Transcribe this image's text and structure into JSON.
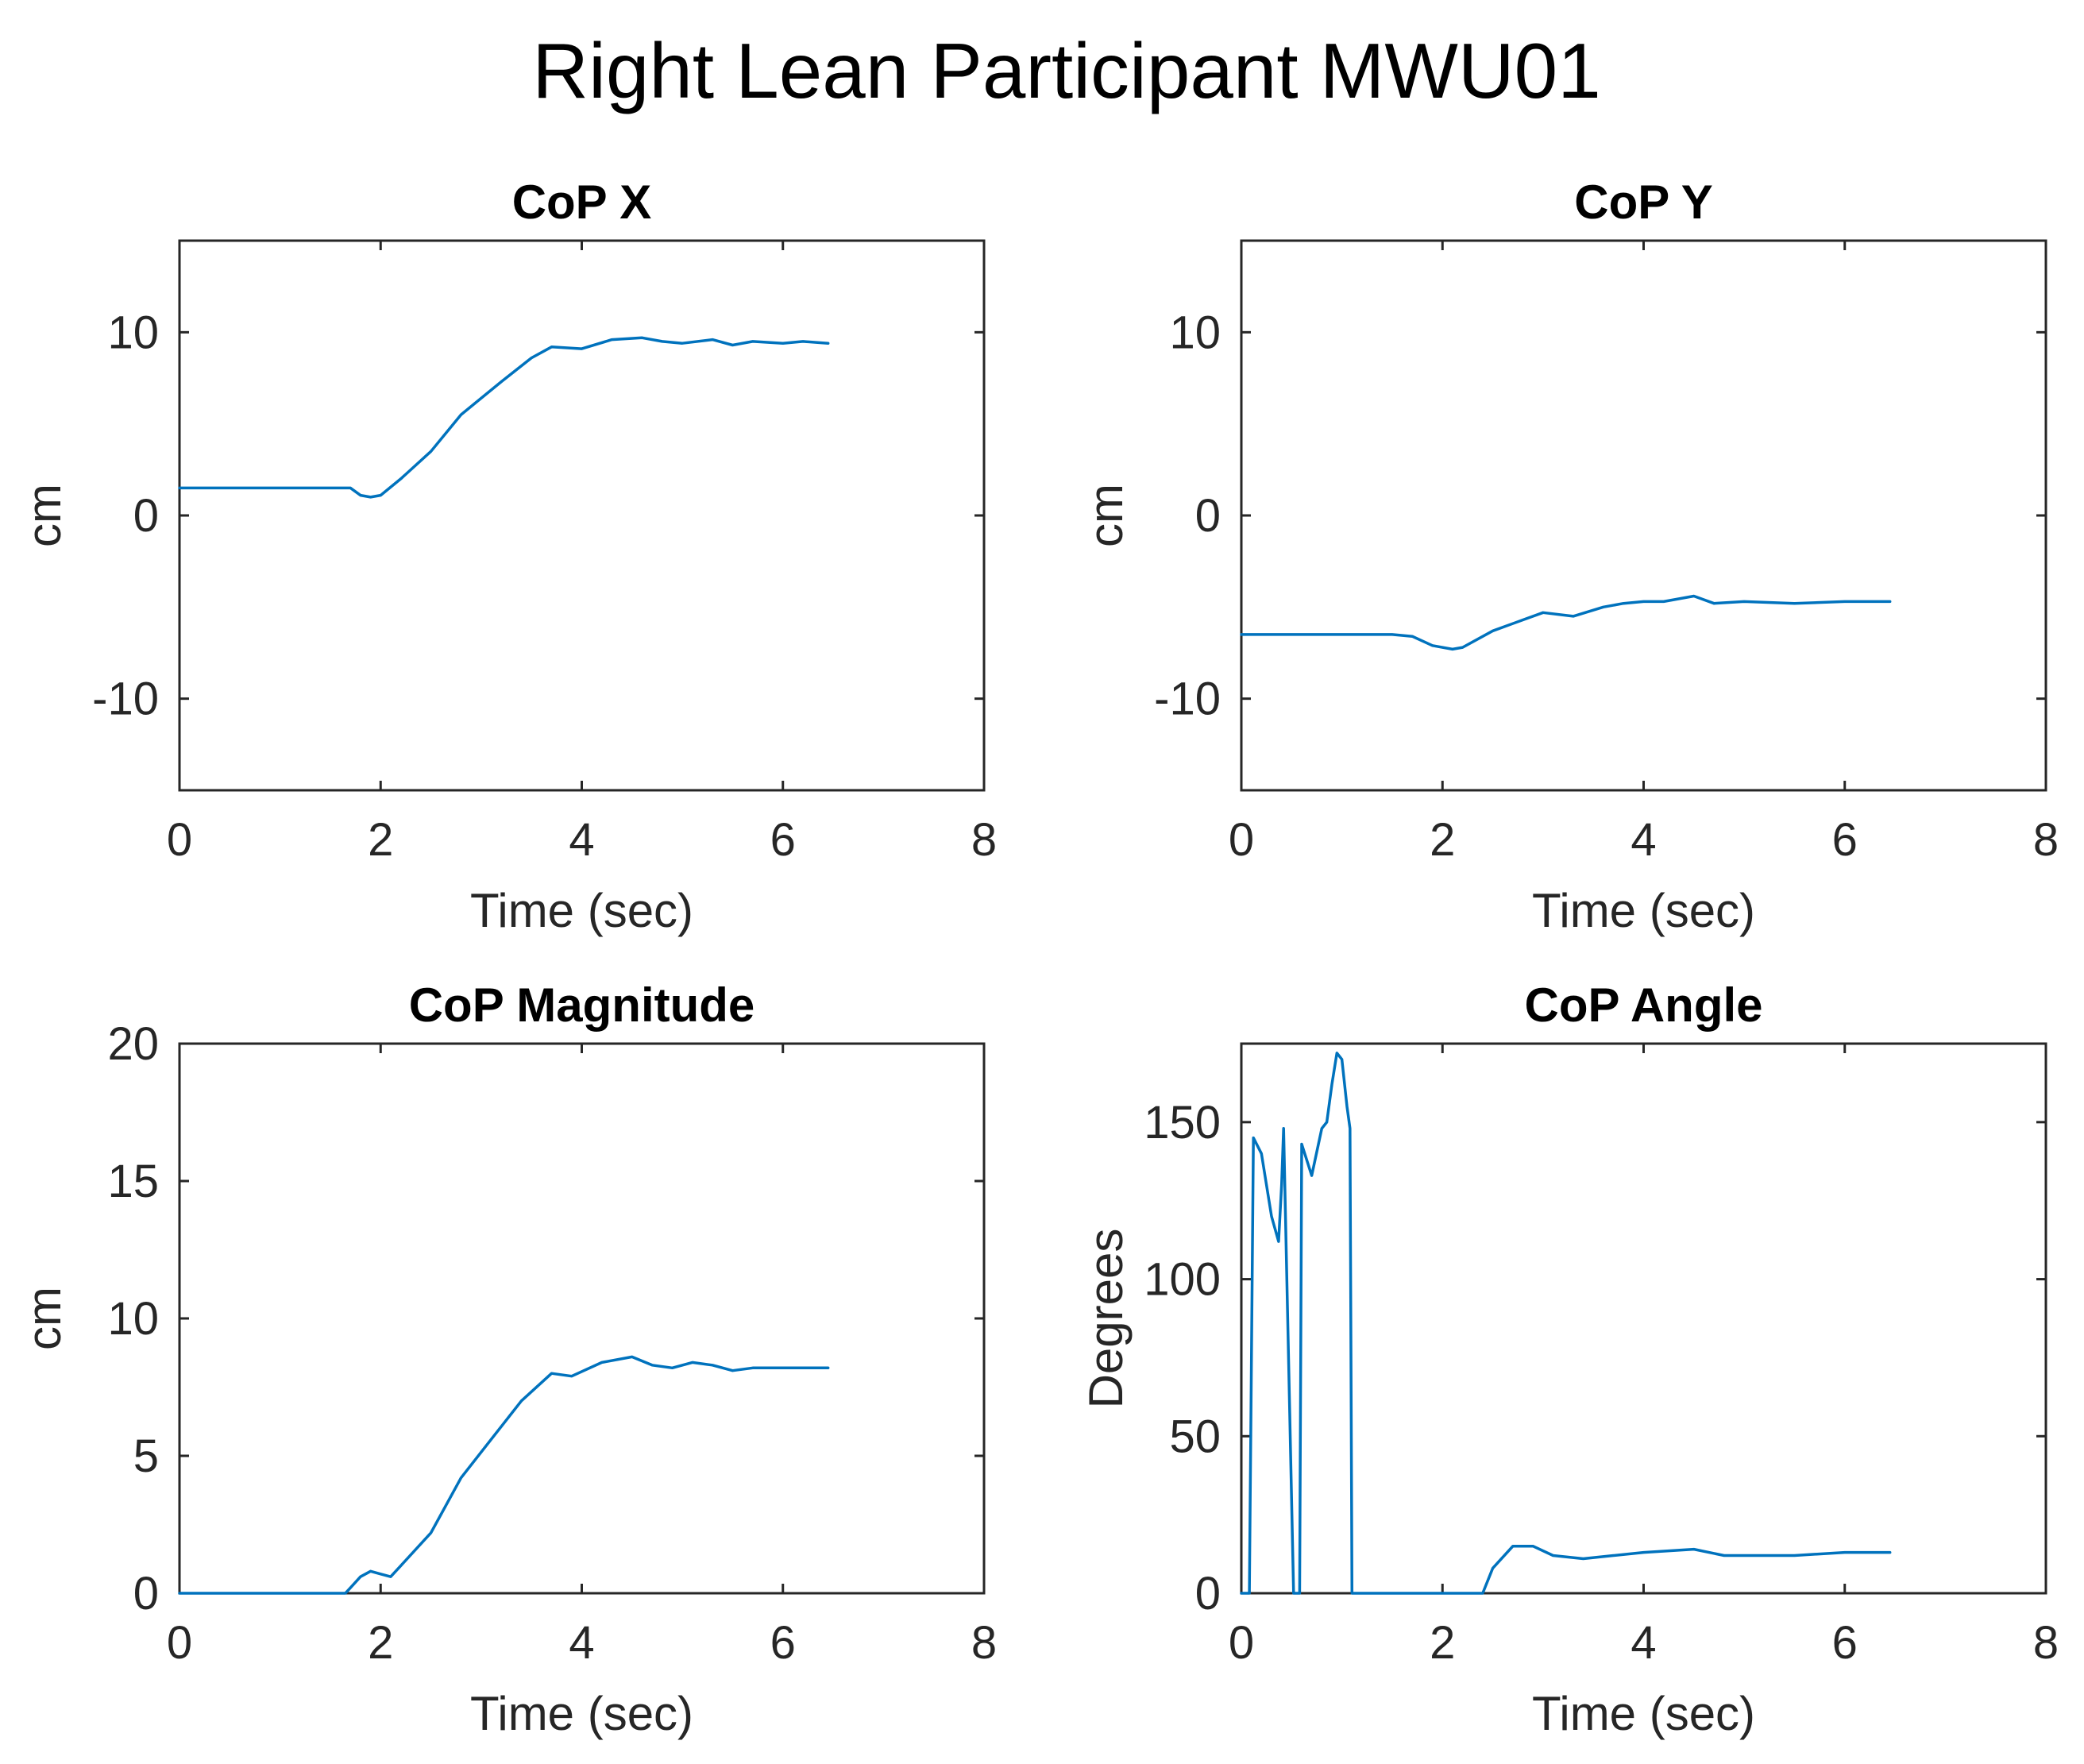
{
  "figure": {
    "title": "Right Lean Participant MWU01",
    "line_color": "#0072BD",
    "axis_color": "#262626"
  },
  "chart_data": [
    {
      "id": "cop-x",
      "type": "line",
      "title": "CoP X",
      "xlabel": "Time (sec)",
      "ylabel": "cm",
      "xlim": [
        0,
        8
      ],
      "ylim": [
        -15,
        15
      ],
      "xticks": [
        0,
        2,
        4,
        6,
        8
      ],
      "yticks": [
        -10,
        0,
        10
      ],
      "series": [
        {
          "name": "CoP X",
          "x": [
            0,
            0.5,
            1.0,
            1.5,
            1.7,
            1.8,
            1.9,
            2.0,
            2.2,
            2.5,
            2.8,
            3.2,
            3.5,
            3.7,
            4.0,
            4.3,
            4.6,
            4.8,
            5.0,
            5.3,
            5.5,
            5.7,
            6.0,
            6.2,
            6.45
          ],
          "y": [
            1.5,
            1.5,
            1.5,
            1.5,
            1.5,
            1.1,
            1.0,
            1.1,
            2.0,
            3.5,
            5.5,
            7.3,
            8.6,
            9.2,
            9.1,
            9.6,
            9.7,
            9.5,
            9.4,
            9.6,
            9.3,
            9.5,
            9.4,
            9.5,
            9.4
          ]
        }
      ]
    },
    {
      "id": "cop-y",
      "type": "line",
      "title": "CoP Y",
      "xlabel": "Time (sec)",
      "ylabel": "cm",
      "xlim": [
        0,
        8
      ],
      "ylim": [
        -15,
        15
      ],
      "xticks": [
        0,
        2,
        4,
        6,
        8
      ],
      "yticks": [
        -10,
        0,
        10
      ],
      "series": [
        {
          "name": "CoP Y",
          "x": [
            0,
            0.5,
            1.0,
            1.5,
            1.7,
            1.9,
            2.1,
            2.2,
            2.5,
            2.8,
            3.0,
            3.3,
            3.6,
            3.8,
            4.0,
            4.2,
            4.5,
            4.7,
            5.0,
            5.5,
            6.0,
            6.45
          ],
          "y": [
            -6.5,
            -6.5,
            -6.5,
            -6.5,
            -6.6,
            -7.1,
            -7.3,
            -7.2,
            -6.3,
            -5.7,
            -5.3,
            -5.5,
            -5.0,
            -4.8,
            -4.7,
            -4.7,
            -4.4,
            -4.8,
            -4.7,
            -4.8,
            -4.7,
            -4.7
          ]
        }
      ]
    },
    {
      "id": "cop-magnitude",
      "type": "line",
      "title": "CoP Magnitude",
      "xlabel": "Time (sec)",
      "ylabel": "cm",
      "xlim": [
        0,
        8
      ],
      "ylim": [
        0,
        20
      ],
      "xticks": [
        0,
        2,
        4,
        6,
        8
      ],
      "yticks": [
        0,
        5,
        10,
        15,
        20
      ],
      "series": [
        {
          "name": "CoP Magnitude",
          "x": [
            0,
            0.5,
            1.0,
            1.5,
            1.65,
            1.7,
            1.8,
            1.9,
            2.0,
            2.1,
            2.2,
            2.5,
            2.8,
            3.1,
            3.4,
            3.7,
            3.9,
            4.2,
            4.5,
            4.7,
            4.9,
            5.1,
            5.3,
            5.5,
            5.7,
            6.0,
            6.2,
            6.45
          ],
          "y": [
            0,
            0,
            0,
            0,
            0,
            0.2,
            0.6,
            0.8,
            0.7,
            0.6,
            1.0,
            2.2,
            4.2,
            5.6,
            7.0,
            8.0,
            7.9,
            8.4,
            8.6,
            8.3,
            8.2,
            8.4,
            8.3,
            8.1,
            8.2,
            8.2,
            8.2,
            8.2
          ]
        }
      ]
    },
    {
      "id": "cop-angle",
      "type": "line",
      "title": "CoP Angle",
      "xlabel": "Time (sec)",
      "ylabel": "Degrees",
      "xlim": [
        0,
        8
      ],
      "ylim": [
        0,
        175
      ],
      "xticks": [
        0,
        2,
        4,
        6,
        8
      ],
      "yticks": [
        0,
        50,
        100,
        150
      ],
      "series": [
        {
          "name": "CoP Angle",
          "x": [
            0,
            0.08,
            0.12,
            0.2,
            0.3,
            0.37,
            0.4,
            0.42,
            0.52,
            0.58,
            0.6,
            0.7,
            0.8,
            0.85,
            0.9,
            0.95,
            1.0,
            1.05,
            1.08,
            1.1,
            1.12,
            2.4,
            2.5,
            2.7,
            2.9,
            3.1,
            3.4,
            3.7,
            4.0,
            4.5,
            4.8,
            5.0,
            5.5,
            6.0,
            6.45
          ],
          "y": [
            0,
            0,
            145,
            140,
            120,
            112,
            130,
            148,
            0,
            0,
            143,
            133,
            148,
            150,
            162,
            172,
            170,
            155,
            148,
            0,
            0,
            0,
            8,
            15,
            15,
            12,
            11,
            12,
            13,
            14,
            12,
            12,
            12,
            13,
            13
          ]
        }
      ]
    }
  ]
}
